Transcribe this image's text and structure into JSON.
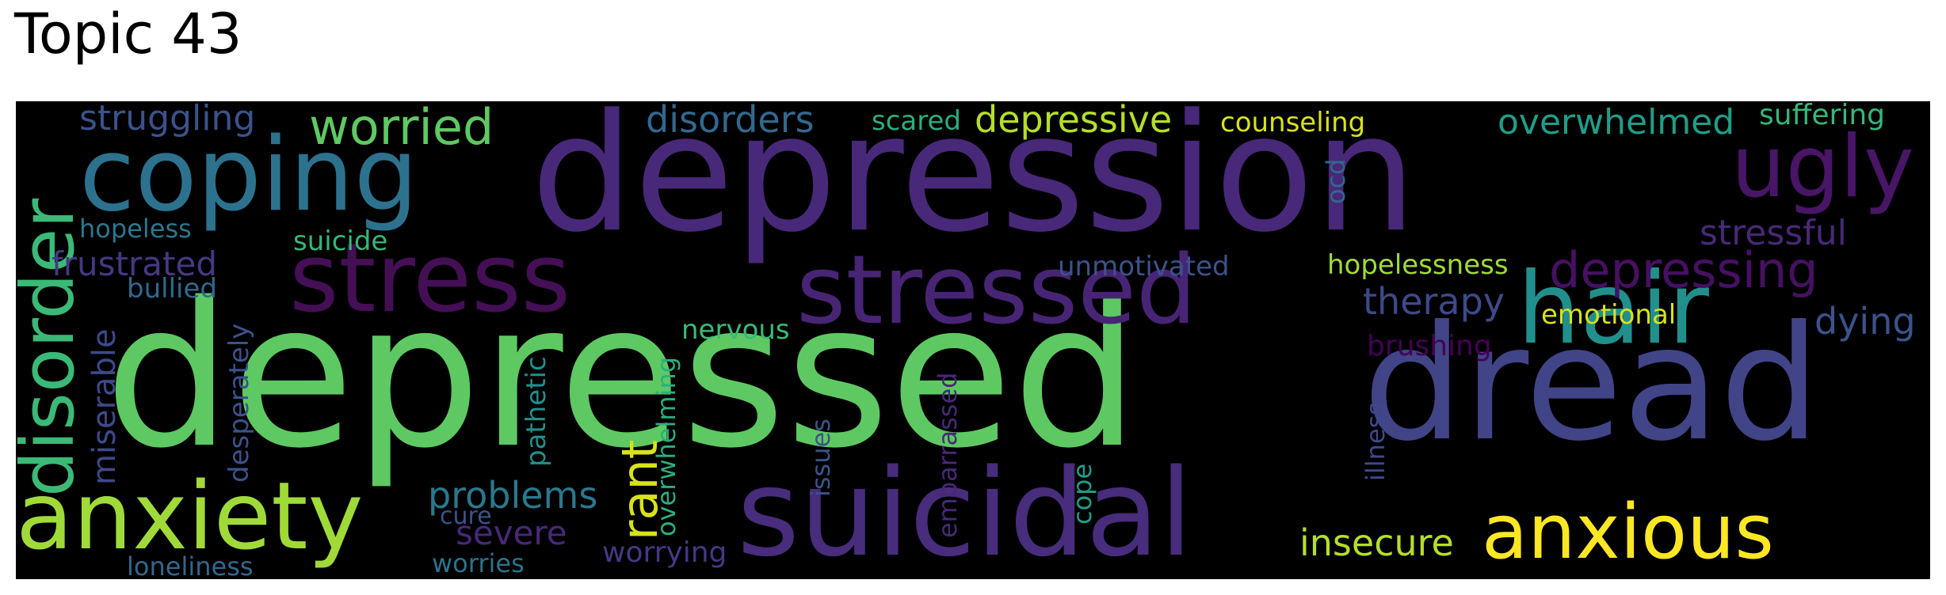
{
  "title": "Topic 43",
  "words": {
    "depressed": "depressed",
    "depression": "depression",
    "dread": "dread",
    "suicidal": "suicidal",
    "stress": "stress",
    "stressed": "stressed",
    "coping": "coping",
    "hair": "hair",
    "anxiety": "anxiety",
    "anxious": "anxious",
    "disorder": "disorder",
    "ugly": "ugly",
    "depressing": "depressing",
    "worried": "worried",
    "struggling": "struggling",
    "disorders": "disorders",
    "scared": "scared",
    "depressive": "depressive",
    "counseling": "counseling",
    "overwhelmed": "overwhelmed",
    "suffering": "suffering",
    "stressful": "stressful",
    "hopeless": "hopeless",
    "suicide": "suicide",
    "frustrated": "frustrated",
    "bullied": "bullied",
    "unmotivated": "unmotivated",
    "hopelessness": "hopelessness",
    "therapy": "therapy",
    "emotional": "emotional",
    "dying": "dying",
    "brushing": "brushing",
    "nervous": "nervous",
    "miserable": "miserable",
    "desperately": "desperately",
    "pathetic": "pathetic",
    "rant": "rant",
    "problems": "problems",
    "overwhelming": "overwhelming",
    "issues": "issues",
    "embarrassed": "embarrassed",
    "cope": "cope",
    "illness": "illness",
    "ocd": "ocd",
    "insecure": "insecure",
    "severe": "severe",
    "cure": "cure",
    "worries": "worries",
    "loneliness": "loneliness",
    "worrying": "worrying"
  }
}
